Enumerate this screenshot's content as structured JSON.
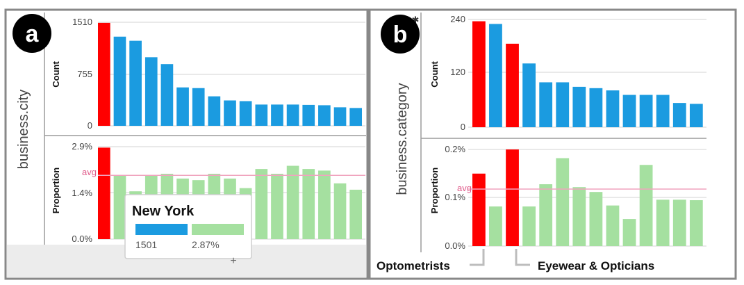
{
  "colors": {
    "count_bar": "#1b9be0",
    "highlight_bar": "#ff0000",
    "proportion_bar": "#a5e0a0",
    "avg_line": "#f0a4be",
    "avg_text": "#e05a8a",
    "frame": "#888888",
    "callout_line": "#bdbdbd",
    "badge": "#000000"
  },
  "panels": [
    {
      "badge": "a",
      "dimension_label": "business.city"
    },
    {
      "badge": "b",
      "dimension_label": "business.category"
    }
  ],
  "tooltip": {
    "title": "New York",
    "count_text": "1501",
    "proportion_text": "2.87%",
    "count_swatch": "count-icon",
    "proportion_swatch": "proportion-icon"
  },
  "callouts": {
    "left": "Optometrists",
    "right": "Eyewear & Opticians"
  },
  "chart_data": [
    {
      "type": "bar",
      "panel": "a",
      "ylabel": "Count",
      "yticks": [
        "1510",
        "755",
        "0"
      ],
      "ylim": [
        0,
        1510
      ],
      "values": [
        1501,
        1300,
        1240,
        1000,
        900,
        560,
        550,
        430,
        370,
        360,
        310,
        310,
        310,
        305,
        300,
        270,
        260
      ],
      "highlighted_index": [
        0
      ],
      "grid": true
    },
    {
      "type": "bar",
      "panel": "a",
      "ylabel": "Proportion",
      "yticks": [
        "2.9%",
        "1.4%",
        "0.0%"
      ],
      "avg_label": "avg",
      "avg_value": 2.0,
      "ylim": [
        0,
        2.9
      ],
      "values": [
        2.87,
        2.0,
        1.5,
        2.0,
        2.05,
        1.9,
        1.85,
        2.05,
        1.9,
        1.6,
        2.2,
        2.05,
        2.3,
        2.2,
        2.15,
        1.75,
        1.55
      ],
      "highlighted_index": [
        0
      ],
      "grid": true
    },
    {
      "type": "bar",
      "panel": "b",
      "ylabel": "Count",
      "yticks": [
        "240",
        "120",
        "0"
      ],
      "ylim": [
        0,
        240
      ],
      "values": [
        236,
        230,
        186,
        142,
        100,
        100,
        90,
        87,
        82,
        72,
        72,
        72,
        54,
        52
      ],
      "highlighted_index": [
        0,
        2
      ],
      "grid": true
    },
    {
      "type": "bar",
      "panel": "b",
      "ylabel": "Proportion",
      "yticks": [
        "0.2%",
        "0.1%",
        "0.0%"
      ],
      "avg_label": "avg",
      "avg_value": 0.118,
      "ylim": [
        0,
        0.2
      ],
      "values": [
        0.15,
        0.082,
        0.2,
        0.082,
        0.128,
        0.182,
        0.122,
        0.112,
        0.084,
        0.056,
        0.168,
        0.096,
        0.096,
        0.095
      ],
      "highlighted_index": [
        0,
        2
      ],
      "grid": true
    }
  ]
}
